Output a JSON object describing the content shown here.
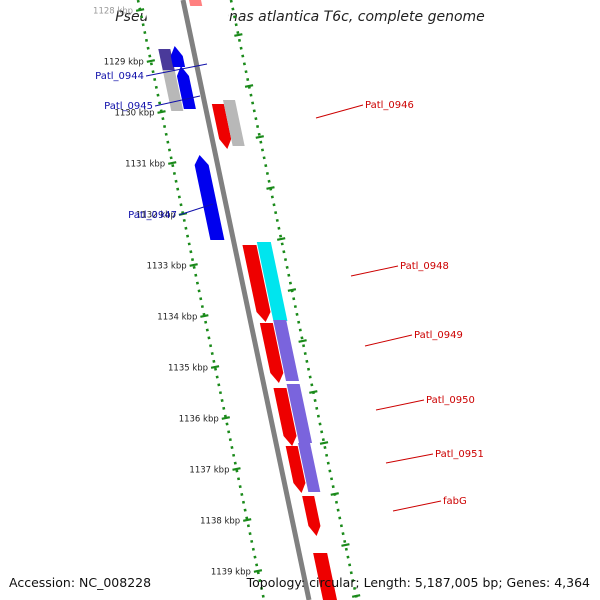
{
  "title": "Pseudoalteromonas atlantica T6c, complete genome",
  "accession_text": "Accession: NC_008228",
  "summary_text": "Topology: circular; Length: 5,187,005 bp; Genes: 4,364",
  "colors": {
    "forward_cds": "#ff0000",
    "reverse_cds": "#0000ff",
    "backbone": "#808080",
    "tick": "#1a8a1a",
    "forward_label": "#cc0000",
    "reverse_label": "#1010aa"
  },
  "ruler": {
    "unit": "kbp",
    "ticks": [
      {
        "label": "1128 kbp"
      },
      {
        "label": "1129 kbp"
      },
      {
        "label": "1130 kbp"
      },
      {
        "label": "1131 kbp"
      },
      {
        "label": "1132 kbp"
      },
      {
        "label": "1133 kbp"
      },
      {
        "label": "1134 kbp"
      },
      {
        "label": "1135 kbp"
      },
      {
        "label": "1136 kbp"
      },
      {
        "label": "1137 kbp"
      },
      {
        "label": "1138 kbp"
      },
      {
        "label": "1139 kbp"
      }
    ]
  },
  "genes_reverse": [
    {
      "label": "Patl_0944"
    },
    {
      "label": "Patl_0945"
    },
    {
      "label": "Patl_0947"
    }
  ],
  "genes_forward": [
    {
      "label": "Patl_0946"
    },
    {
      "label": "Patl_0948"
    },
    {
      "label": "Patl_0949"
    },
    {
      "label": "Patl_0950"
    },
    {
      "label": "Patl_0951"
    },
    {
      "label": "fabG"
    }
  ]
}
